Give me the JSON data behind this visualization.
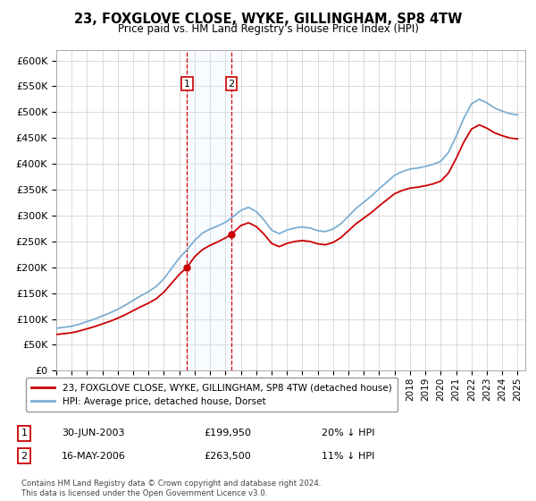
{
  "title": "23, FOXGLOVE CLOSE, WYKE, GILLINGHAM, SP8 4TW",
  "subtitle": "Price paid vs. HM Land Registry's House Price Index (HPI)",
  "ylim": [
    0,
    620000
  ],
  "yticks": [
    0,
    50000,
    100000,
    150000,
    200000,
    250000,
    300000,
    350000,
    400000,
    450000,
    500000,
    550000,
    600000
  ],
  "ytick_labels": [
    "£0",
    "£50K",
    "£100K",
    "£150K",
    "£200K",
    "£250K",
    "£300K",
    "£350K",
    "£400K",
    "£450K",
    "£500K",
    "£550K",
    "£600K"
  ],
  "legend_entry1": "23, FOXGLOVE CLOSE, WYKE, GILLINGHAM, SP8 4TW (detached house)",
  "legend_entry2": "HPI: Average price, detached house, Dorset",
  "transaction1_date": "30-JUN-2003",
  "transaction1_price": "£199,950",
  "transaction1_hpi": "20% ↓ HPI",
  "transaction1_year": 2003.5,
  "transaction1_val": 199950,
  "transaction2_date": "16-MAY-2006",
  "transaction2_price": "£263,500",
  "transaction2_hpi": "11% ↓ HPI",
  "transaction2_year": 2006.38,
  "transaction2_val": 263500,
  "footnote": "Contains HM Land Registry data © Crown copyright and database right 2024.\nThis data is licensed under the Open Government Licence v3.0.",
  "hpi_color": "#7bafd4",
  "price_color": "#cc0000",
  "background_color": "#ffffff",
  "grid_color": "#cccccc",
  "shade_color": "#ddeeff",
  "xlim_left": 1995,
  "xlim_right": 2025.5
}
